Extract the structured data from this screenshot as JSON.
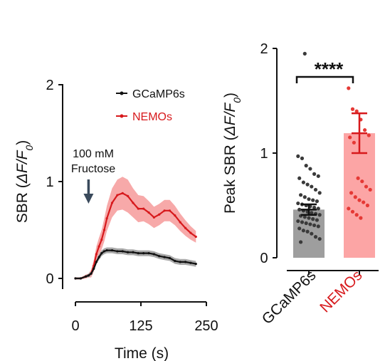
{
  "colors": {
    "gcamp": "#111111",
    "gcamp_band": "#a9a9a9",
    "nemos": "#d7191c",
    "nemos_band": "#f7a9a9",
    "bar_gcamp": "#9e9e9e",
    "bar_nemos": "#fca5a5",
    "axis": "#111111"
  },
  "chart_data": [
    {
      "type": "line",
      "xlabel": "Time (s)",
      "ylabel_prefix": "SBR (",
      "ylabel_math": "ΔF/F",
      "ylabel_sub": "0",
      "ylabel_suffix": ")",
      "xlim": [
        0,
        250
      ],
      "ylim": [
        -0.05,
        2
      ],
      "xticks": [
        0,
        125,
        250
      ],
      "xtick_labels": [
        "0",
        "125",
        "250"
      ],
      "yticks": [
        0,
        1,
        2
      ],
      "ytick_labels": [
        "0",
        "1",
        "2"
      ],
      "annotation": {
        "lines": [
          "100 mM",
          "Fructose"
        ],
        "x": 25
      },
      "legend": {
        "position": "top-right",
        "entries": [
          "GCaMP6s",
          "NEMOs"
        ]
      },
      "series": [
        {
          "name": "GCaMP6s",
          "x": [
            0,
            10,
            20,
            25,
            30,
            35,
            40,
            45,
            50,
            55,
            60,
            70,
            80,
            90,
            100,
            110,
            120,
            130,
            140,
            150,
            160,
            170,
            180,
            190,
            200,
            210,
            220,
            230
          ],
          "y": [
            0.0,
            0.0,
            0.02,
            0.03,
            0.05,
            0.1,
            0.17,
            0.22,
            0.26,
            0.28,
            0.29,
            0.29,
            0.28,
            0.28,
            0.27,
            0.27,
            0.26,
            0.26,
            0.26,
            0.25,
            0.23,
            0.22,
            0.21,
            0.18,
            0.17,
            0.17,
            0.16,
            0.15
          ],
          "err": [
            0.01,
            0.01,
            0.01,
            0.02,
            0.02,
            0.02,
            0.02,
            0.03,
            0.03,
            0.03,
            0.03,
            0.03,
            0.03,
            0.03,
            0.03,
            0.03,
            0.03,
            0.03,
            0.03,
            0.03,
            0.03,
            0.03,
            0.03,
            0.03,
            0.03,
            0.03,
            0.03,
            0.03
          ]
        },
        {
          "name": "NEMOs",
          "x": [
            0,
            10,
            20,
            25,
            30,
            35,
            40,
            45,
            50,
            55,
            60,
            70,
            80,
            90,
            100,
            110,
            120,
            130,
            140,
            150,
            160,
            170,
            180,
            190,
            200,
            210,
            220,
            230
          ],
          "y": [
            0.0,
            0.0,
            0.02,
            0.03,
            0.05,
            0.13,
            0.25,
            0.33,
            0.4,
            0.5,
            0.62,
            0.78,
            0.86,
            0.88,
            0.85,
            0.78,
            0.72,
            0.72,
            0.68,
            0.63,
            0.66,
            0.7,
            0.7,
            0.65,
            0.58,
            0.52,
            0.47,
            0.43
          ],
          "err": [
            0.01,
            0.01,
            0.02,
            0.02,
            0.04,
            0.06,
            0.08,
            0.09,
            0.1,
            0.12,
            0.13,
            0.15,
            0.16,
            0.17,
            0.17,
            0.15,
            0.14,
            0.13,
            0.12,
            0.11,
            0.11,
            0.11,
            0.11,
            0.1,
            0.09,
            0.08,
            0.07,
            0.06
          ]
        }
      ]
    },
    {
      "type": "bar",
      "ylabel_prefix": "Peak SBR (",
      "ylabel_math": "ΔF/F",
      "ylabel_sub": "0",
      "ylabel_suffix": ")",
      "ylim": [
        0,
        2
      ],
      "yticks": [
        0,
        1,
        2
      ],
      "ytick_labels": [
        "0",
        "1",
        "2"
      ],
      "categories": [
        "GCaMP6s",
        "NEMOs"
      ],
      "values": [
        0.46,
        1.19
      ],
      "errors": [
        0.05,
        0.19
      ],
      "significance": "****",
      "points": [
        [
          0.97,
          0.95,
          0.88,
          0.85,
          0.8,
          0.78,
          0.76,
          0.72,
          0.7,
          0.68,
          0.65,
          0.62,
          0.6,
          0.58,
          0.56,
          0.55,
          0.54,
          0.52,
          0.51,
          0.5,
          0.49,
          0.48,
          0.47,
          0.46,
          0.45,
          0.44,
          0.43,
          0.42,
          0.41,
          0.4,
          0.39,
          0.38,
          0.37,
          0.36,
          0.35,
          0.34,
          0.33,
          0.32,
          0.31,
          0.3,
          0.28,
          0.26,
          0.25,
          0.23,
          0.2,
          0.18,
          0.15,
          1.95
        ],
        [
          1.62,
          1.42,
          1.4,
          1.32,
          1.22,
          1.17,
          1.15,
          1.1,
          0.76,
          0.73,
          0.68,
          0.65,
          0.62,
          0.58,
          0.55,
          0.53,
          0.5,
          0.47,
          0.44,
          0.41,
          0.38
        ]
      ]
    }
  ]
}
